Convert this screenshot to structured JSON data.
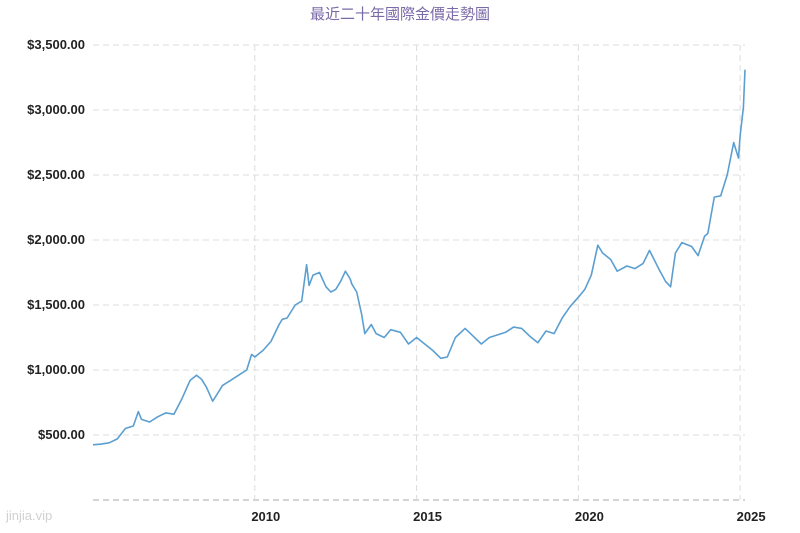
{
  "watermark": "jinjia.vip",
  "colors": {
    "line": "#5b9fd1",
    "grid": "#dddddd",
    "title": "#7a6aa8"
  },
  "chart_data": {
    "type": "line",
    "title": "最近二十年國際金價走勢圖",
    "xlabel": "",
    "ylabel": "",
    "xlim": [
      2005.0,
      2025.15
    ],
    "ylim": [
      0,
      3500
    ],
    "grid": true,
    "y_ticks": [
      500,
      1000,
      1500,
      2000,
      2500,
      3000,
      3500
    ],
    "y_tick_labels": [
      "$500.00",
      "$1,000.00",
      "$1,500.00",
      "$2,000.00",
      "$2,500.00",
      "$3,000.00",
      "$3,500.00"
    ],
    "x_ticks": [
      2010,
      2015,
      2020,
      2025
    ],
    "x_tick_labels": [
      "2010",
      "2015",
      "2020",
      "2025"
    ],
    "series": [
      {
        "x": [
          2005.0,
          2005.25,
          2005.5,
          2005.75,
          2006.0,
          2006.25,
          2006.4,
          2006.5,
          2006.75,
          2007.0,
          2007.25,
          2007.5,
          2007.75,
          2008.0,
          2008.2,
          2008.35,
          2008.5,
          2008.7,
          2008.85,
          2009.0,
          2009.25,
          2009.5,
          2009.75,
          2009.9,
          2010.0,
          2010.25,
          2010.5,
          2010.75,
          2010.85,
          2011.0,
          2011.25,
          2011.45,
          2011.6,
          2011.68,
          2011.8,
          2012.0,
          2012.2,
          2012.35,
          2012.5,
          2012.65,
          2012.8,
          2012.95,
          2013.0,
          2013.15,
          2013.3,
          2013.4,
          2013.6,
          2013.75,
          2014.0,
          2014.2,
          2014.5,
          2014.75,
          2015.0,
          2015.25,
          2015.5,
          2015.75,
          2015.95,
          2016.2,
          2016.5,
          2016.75,
          2017.0,
          2017.25,
          2017.5,
          2017.75,
          2018.0,
          2018.25,
          2018.5,
          2018.75,
          2019.0,
          2019.25,
          2019.5,
          2019.75,
          2020.0,
          2020.2,
          2020.4,
          2020.6,
          2020.75,
          2021.0,
          2021.2,
          2021.5,
          2021.75,
          2022.0,
          2022.2,
          2022.5,
          2022.7,
          2022.85,
          2023.0,
          2023.2,
          2023.5,
          2023.7,
          2023.9,
          2024.0,
          2024.2,
          2024.4,
          2024.6,
          2024.8,
          2024.95,
          2025.0,
          2025.1,
          2025.15
        ],
        "values": [
          425,
          430,
          440,
          470,
          550,
          570,
          680,
          620,
          600,
          640,
          670,
          660,
          780,
          920,
          960,
          930,
          870,
          760,
          820,
          880,
          920,
          960,
          1000,
          1120,
          1100,
          1150,
          1220,
          1350,
          1390,
          1400,
          1500,
          1530,
          1810,
          1650,
          1730,
          1750,
          1640,
          1600,
          1620,
          1680,
          1760,
          1700,
          1660,
          1600,
          1430,
          1280,
          1350,
          1280,
          1250,
          1310,
          1290,
          1200,
          1250,
          1200,
          1150,
          1090,
          1100,
          1250,
          1320,
          1260,
          1200,
          1250,
          1270,
          1290,
          1330,
          1320,
          1260,
          1210,
          1300,
          1280,
          1400,
          1490,
          1560,
          1620,
          1730,
          1960,
          1900,
          1850,
          1760,
          1800,
          1780,
          1820,
          1920,
          1770,
          1680,
          1640,
          1900,
          1980,
          1950,
          1880,
          2030,
          2050,
          2330,
          2340,
          2500,
          2750,
          2630,
          2800,
          3020,
          3310
        ]
      }
    ]
  }
}
